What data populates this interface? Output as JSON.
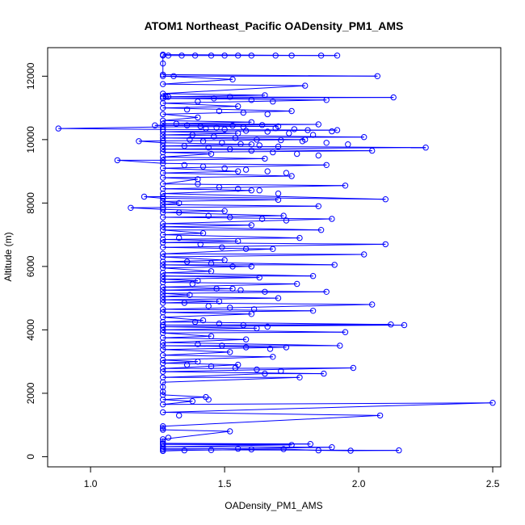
{
  "chart_data": {
    "type": "line",
    "title": "ATOM1 Northeast_Pacific OADensity_PM1_AMS",
    "xlabel": "OADensity_PM1_AMS",
    "ylabel": "Altitude (m)",
    "xlim": [
      0.84,
      2.53
    ],
    "ylim": [
      -320,
      12900
    ],
    "x_ticks": [
      1.0,
      1.5,
      2.0,
      2.5
    ],
    "x_tick_labels": [
      "1.0",
      "1.5",
      "2.0",
      "2.5"
    ],
    "y_ticks": [
      0,
      2000,
      4000,
      6000,
      8000,
      10000,
      12000
    ],
    "y_tick_labels": [
      "0",
      "2000",
      "4000",
      "6000",
      "8000",
      "10000",
      "12000"
    ],
    "grid": false,
    "legend": "none",
    "marker": "open-circle",
    "colors": {
      "series": "#0000ff",
      "axis": "#000000"
    },
    "series": [
      {
        "points": [
          [
            1.27,
            180
          ],
          [
            1.35,
            200
          ],
          [
            1.45,
            210
          ],
          [
            1.6,
            230
          ],
          [
            1.72,
            240
          ],
          [
            1.85,
            200
          ],
          [
            1.97,
            190
          ],
          [
            2.15,
            200
          ],
          [
            1.27,
            220
          ],
          [
            1.27,
            260
          ],
          [
            1.55,
            250
          ],
          [
            1.9,
            300
          ],
          [
            1.27,
            320
          ],
          [
            1.75,
            370
          ],
          [
            1.27,
            390
          ],
          [
            1.82,
            400
          ],
          [
            1.27,
            420
          ],
          [
            1.27,
            480
          ],
          [
            1.27,
            550
          ],
          [
            1.52,
            800
          ],
          [
            1.27,
            850
          ],
          [
            1.27,
            900
          ],
          [
            1.27,
            960
          ],
          [
            2.08,
            1300
          ],
          [
            1.27,
            1400
          ],
          [
            2.5,
            1700
          ],
          [
            1.27,
            1650
          ],
          [
            1.38,
            1750
          ],
          [
            1.27,
            1800
          ],
          [
            1.43,
            1880
          ],
          [
            1.27,
            1950
          ],
          [
            1.27,
            2050
          ],
          [
            1.27,
            2200
          ],
          [
            1.27,
            2350
          ],
          [
            1.78,
            2500
          ],
          [
            1.27,
            2500
          ],
          [
            1.65,
            2620
          ],
          [
            1.87,
            2620
          ],
          [
            1.27,
            2680
          ],
          [
            1.98,
            2800
          ],
          [
            1.27,
            2780
          ],
          [
            1.55,
            2900
          ],
          [
            1.27,
            2950
          ],
          [
            1.4,
            3000
          ],
          [
            1.27,
            3050
          ],
          [
            1.68,
            3150
          ],
          [
            1.27,
            3200
          ],
          [
            1.52,
            3300
          ],
          [
            1.27,
            3380
          ],
          [
            1.73,
            3450
          ],
          [
            1.27,
            3500
          ],
          [
            1.93,
            3500
          ],
          [
            1.27,
            3600
          ],
          [
            1.58,
            3700
          ],
          [
            1.27,
            3750
          ],
          [
            1.45,
            3800
          ],
          [
            1.27,
            3900
          ],
          [
            1.95,
            3930
          ],
          [
            1.27,
            4000
          ],
          [
            1.62,
            4050
          ],
          [
            1.27,
            4100
          ],
          [
            2.17,
            4150
          ],
          [
            1.27,
            4150
          ],
          [
            2.12,
            4170
          ],
          [
            1.27,
            4250
          ],
          [
            1.42,
            4300
          ],
          [
            1.27,
            4400
          ],
          [
            1.6,
            4500
          ],
          [
            1.27,
            4550
          ],
          [
            1.83,
            4600
          ],
          [
            1.27,
            4650
          ],
          [
            2.05,
            4800
          ],
          [
            1.27,
            4850
          ],
          [
            1.48,
            4900
          ],
          [
            1.27,
            4950
          ],
          [
            1.7,
            5000
          ],
          [
            1.27,
            5050
          ],
          [
            1.37,
            5100
          ],
          [
            1.27,
            5150
          ],
          [
            1.88,
            5200
          ],
          [
            1.27,
            5250
          ],
          [
            1.53,
            5300
          ],
          [
            1.27,
            5350
          ],
          [
            1.77,
            5450
          ],
          [
            1.27,
            5500
          ],
          [
            1.4,
            5550
          ],
          [
            1.27,
            5600
          ],
          [
            1.63,
            5650
          ],
          [
            1.27,
            5700
          ],
          [
            1.83,
            5700
          ],
          [
            1.27,
            5800
          ],
          [
            1.45,
            5850
          ],
          [
            1.27,
            5950
          ],
          [
            1.6,
            6000
          ],
          [
            1.27,
            6050
          ],
          [
            1.91,
            6050
          ],
          [
            1.27,
            6150
          ],
          [
            1.5,
            6200
          ],
          [
            1.27,
            6300
          ],
          [
            2.02,
            6380
          ],
          [
            1.27,
            6400
          ],
          [
            1.68,
            6550
          ],
          [
            1.27,
            6600
          ],
          [
            2.1,
            6700
          ],
          [
            1.27,
            6750
          ],
          [
            1.55,
            6800
          ],
          [
            1.27,
            6850
          ],
          [
            1.78,
            6900
          ],
          [
            1.27,
            7000
          ],
          [
            1.42,
            7050
          ],
          [
            1.27,
            7150
          ],
          [
            1.86,
            7150
          ],
          [
            1.27,
            7250
          ],
          [
            1.6,
            7300
          ],
          [
            1.27,
            7350
          ],
          [
            1.9,
            7500
          ],
          [
            1.27,
            7550
          ],
          [
            1.72,
            7600
          ],
          [
            1.27,
            7700
          ],
          [
            1.5,
            7750
          ],
          [
            1.27,
            7800
          ],
          [
            1.15,
            7850
          ],
          [
            1.27,
            7860
          ],
          [
            1.85,
            7900
          ],
          [
            1.27,
            7950
          ],
          [
            1.33,
            8000
          ],
          [
            1.27,
            8050
          ],
          [
            1.7,
            8100
          ],
          [
            1.27,
            8150
          ],
          [
            1.2,
            8200
          ],
          [
            1.27,
            8200
          ],
          [
            2.1,
            8120
          ],
          [
            1.27,
            8300
          ],
          [
            1.6,
            8400
          ],
          [
            1.27,
            8450
          ],
          [
            1.95,
            8550
          ],
          [
            1.27,
            8600
          ],
          [
            1.4,
            8750
          ],
          [
            1.27,
            8800
          ],
          [
            1.75,
            8850
          ],
          [
            1.27,
            8950
          ],
          [
            1.55,
            9000
          ],
          [
            1.27,
            9100
          ],
          [
            1.88,
            9200
          ],
          [
            1.27,
            9250
          ],
          [
            1.1,
            9350
          ],
          [
            1.27,
            9350
          ],
          [
            1.65,
            9400
          ],
          [
            1.27,
            9450
          ],
          [
            1.45,
            9550
          ],
          [
            1.27,
            9600
          ],
          [
            2.05,
            9650
          ],
          [
            1.27,
            9700
          ],
          [
            2.25,
            9750
          ],
          [
            1.27,
            9800
          ],
          [
            1.6,
            9850
          ],
          [
            1.27,
            9900
          ],
          [
            1.18,
            9950
          ],
          [
            1.27,
            9960
          ],
          [
            1.8,
            10000
          ],
          [
            1.27,
            10050
          ],
          [
            2.02,
            10080
          ],
          [
            1.27,
            10150
          ],
          [
            1.55,
            10200
          ],
          [
            1.27,
            10250
          ],
          [
            1.92,
            10300
          ],
          [
            1.27,
            10320
          ],
          [
            0.88,
            10350
          ],
          [
            1.27,
            10400
          ],
          [
            1.7,
            10420
          ],
          [
            1.24,
            10450
          ],
          [
            1.85,
            10480
          ],
          [
            1.27,
            10500
          ],
          [
            1.6,
            10550
          ],
          [
            1.27,
            10600
          ],
          [
            1.4,
            10700
          ],
          [
            1.27,
            10800
          ],
          [
            1.75,
            10900
          ],
          [
            1.27,
            11000
          ],
          [
            1.55,
            11050
          ],
          [
            1.27,
            11150
          ],
          [
            1.88,
            11250
          ],
          [
            1.27,
            11300
          ],
          [
            2.13,
            11330
          ],
          [
            1.27,
            11350
          ],
          [
            1.65,
            11400
          ],
          [
            1.27,
            11450
          ],
          [
            1.8,
            11700
          ],
          [
            1.27,
            11750
          ],
          [
            1.53,
            11900
          ],
          [
            1.27,
            12000
          ],
          [
            2.07,
            12000
          ],
          [
            1.27,
            12050
          ],
          [
            1.27,
            12400
          ],
          [
            1.27,
            12650
          ],
          [
            1.45,
            12650
          ],
          [
            1.6,
            12650
          ],
          [
            1.75,
            12650
          ],
          [
            1.92,
            12650
          ],
          [
            1.27,
            12680
          ]
        ],
        "extra_markers": [
          [
            1.43,
            10350
          ],
          [
            1.5,
            10320
          ],
          [
            1.58,
            10280
          ],
          [
            1.66,
            10250
          ],
          [
            1.74,
            10200
          ],
          [
            1.83,
            10150
          ],
          [
            1.38,
            10150
          ],
          [
            1.46,
            10100
          ],
          [
            1.54,
            10050
          ],
          [
            1.62,
            10000
          ],
          [
            1.71,
            9980
          ],
          [
            1.79,
            9950
          ],
          [
            1.88,
            9900
          ],
          [
            1.96,
            9850
          ],
          [
            1.35,
            9800
          ],
          [
            1.44,
            9750
          ],
          [
            1.52,
            9700
          ],
          [
            1.6,
            9650
          ],
          [
            1.68,
            9600
          ],
          [
            1.77,
            9550
          ],
          [
            1.85,
            9500
          ],
          [
            1.32,
            10500
          ],
          [
            1.36,
            10450
          ],
          [
            1.41,
            10420
          ],
          [
            1.47,
            10380
          ],
          [
            1.53,
            10440
          ],
          [
            1.57,
            10400
          ],
          [
            1.64,
            10460
          ],
          [
            1.69,
            10360
          ],
          [
            1.76,
            10330
          ],
          [
            1.81,
            10300
          ],
          [
            1.9,
            10260
          ],
          [
            1.37,
            10000
          ],
          [
            1.42,
            9950
          ],
          [
            1.49,
            9900
          ],
          [
            1.56,
            9860
          ],
          [
            1.63,
            9820
          ],
          [
            1.7,
            9780
          ],
          [
            1.35,
            9200
          ],
          [
            1.42,
            9150
          ],
          [
            1.5,
            9100
          ],
          [
            1.58,
            9050
          ],
          [
            1.66,
            9000
          ],
          [
            1.73,
            8950
          ],
          [
            1.4,
            8600
          ],
          [
            1.48,
            8500
          ],
          [
            1.55,
            8450
          ],
          [
            1.63,
            8400
          ],
          [
            1.7,
            8300
          ],
          [
            1.33,
            7700
          ],
          [
            1.44,
            7600
          ],
          [
            1.52,
            7550
          ],
          [
            1.64,
            7500
          ],
          [
            1.73,
            7450
          ],
          [
            1.33,
            6900
          ],
          [
            1.41,
            6700
          ],
          [
            1.49,
            6600
          ],
          [
            1.58,
            6550
          ],
          [
            1.36,
            6150
          ],
          [
            1.45,
            6100
          ],
          [
            1.53,
            6000
          ],
          [
            1.38,
            5450
          ],
          [
            1.47,
            5300
          ],
          [
            1.56,
            5250
          ],
          [
            1.65,
            5200
          ],
          [
            1.35,
            4850
          ],
          [
            1.44,
            4750
          ],
          [
            1.52,
            4700
          ],
          [
            1.61,
            4650
          ],
          [
            1.39,
            4250
          ],
          [
            1.48,
            4200
          ],
          [
            1.57,
            4150
          ],
          [
            1.66,
            4100
          ],
          [
            1.4,
            3550
          ],
          [
            1.49,
            3500
          ],
          [
            1.58,
            3450
          ],
          [
            1.67,
            3400
          ],
          [
            1.36,
            2900
          ],
          [
            1.45,
            2850
          ],
          [
            1.54,
            2800
          ],
          [
            1.62,
            2750
          ],
          [
            1.71,
            2700
          ],
          [
            1.44,
            1800
          ],
          [
            1.33,
            1300
          ],
          [
            1.29,
            600
          ],
          [
            1.4,
            11200
          ],
          [
            1.46,
            11300
          ],
          [
            1.52,
            11350
          ],
          [
            1.6,
            11250
          ],
          [
            1.68,
            11200
          ],
          [
            1.36,
            10950
          ],
          [
            1.48,
            10900
          ],
          [
            1.57,
            10850
          ],
          [
            1.66,
            10800
          ],
          [
            1.34,
            12650
          ],
          [
            1.39,
            12650
          ],
          [
            1.5,
            12650
          ],
          [
            1.55,
            12650
          ],
          [
            1.69,
            12650
          ],
          [
            1.86,
            12650
          ],
          [
            1.31,
            12000
          ],
          [
            1.29,
            12650
          ],
          [
            1.28,
            11350
          ],
          [
            1.29,
            11350
          ]
        ]
      }
    ]
  }
}
